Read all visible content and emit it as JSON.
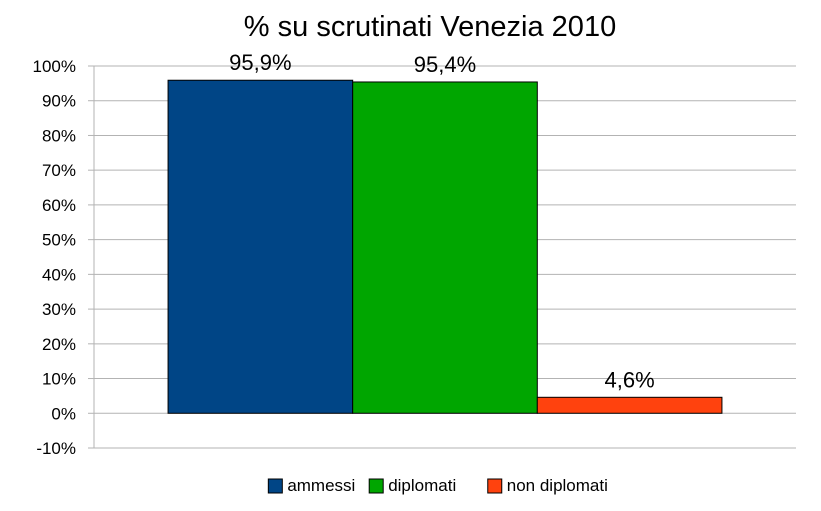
{
  "chart_data": {
    "type": "bar",
    "title": "% su scrutinati Venezia 2010",
    "xlabel": "",
    "ylabel": "",
    "ylim": [
      -10,
      100
    ],
    "y_ticks": [
      "-10%",
      "0%",
      "10%",
      "20%",
      "30%",
      "40%",
      "50%",
      "60%",
      "70%",
      "80%",
      "90%",
      "100%"
    ],
    "grid": true,
    "legend_position": "bottom",
    "series": [
      {
        "name": "ammessi",
        "values": [
          95.9
        ],
        "label": "95,9%",
        "color": "#004586"
      },
      {
        "name": "diplomati",
        "values": [
          95.4
        ],
        "label": "95,4%",
        "color": "#00a600"
      },
      {
        "name": "non diplomati",
        "values": [
          4.6
        ],
        "label": "4,6%",
        "color": "#ff420e"
      }
    ]
  }
}
